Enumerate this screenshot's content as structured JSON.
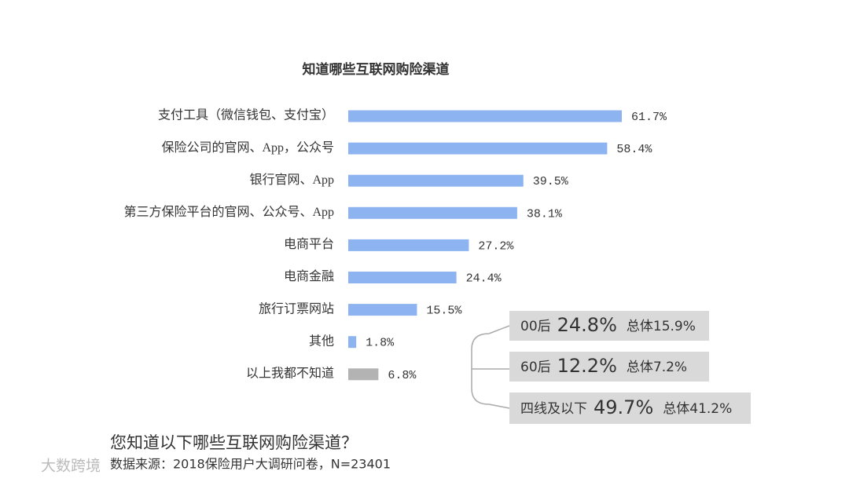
{
  "chart_data": {
    "type": "hbar",
    "title": "知道哪些互联网购险渠道",
    "categories": [
      "支付工具（微信钱包、支付宝）",
      "保险公司的官网、App，公众号",
      "银行官网、App",
      "第三方保险平台的官网、公众号、App",
      "电商平台",
      "电商金融",
      "旅行订票网站",
      "其他",
      "以上我都不知道"
    ],
    "values": [
      61.7,
      58.4,
      39.5,
      38.1,
      27.2,
      24.4,
      15.5,
      1.8,
      6.8
    ],
    "value_labels": [
      "61.7%",
      "58.4%",
      "39.5%",
      "38.1%",
      "27.2%",
      "24.4%",
      "15.5%",
      "1.8%",
      "6.8%"
    ],
    "colors": [
      "#8db4f0",
      "#8db4f0",
      "#8db4f0",
      "#8db4f0",
      "#8db4f0",
      "#8db4f0",
      "#8db4f0",
      "#8db4f0",
      "#b3b3b3"
    ],
    "annotations": [
      {
        "group": "00后",
        "value": "24.8%",
        "total": "总体15.9%"
      },
      {
        "group": "60后",
        "value": "12.2%",
        "total": "总体7.2%"
      },
      {
        "group": "四线及以下",
        "value": "49.7%",
        "total": "总体41.2%"
      }
    ],
    "question": "您知道以下哪些互联网购险渠道？",
    "source": "数据来源：2018保险用户大调研问卷，N=23401",
    "watermark": "大数跨境"
  }
}
